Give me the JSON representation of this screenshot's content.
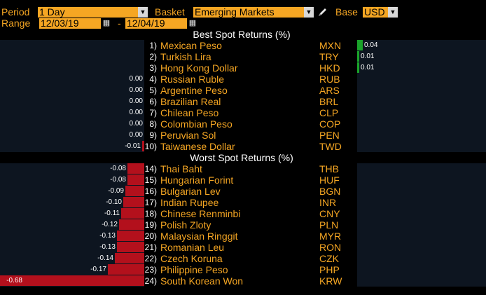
{
  "toolbar": {
    "period_label": "Period",
    "period_value": "1 Day",
    "basket_label": "Basket",
    "basket_value": "Emerging Markets",
    "base_label": "Base",
    "base_value": "USD",
    "range_label": "Range",
    "range_start": "12/03/19",
    "range_sep": "-",
    "range_end": "12/04/19"
  },
  "best_title": "Best Spot Returns (%)",
  "worst_title": "Worst Spot Returns (%)",
  "colors": {
    "accent": "#f5a623",
    "positive": "#1aa32a",
    "negative": "#b3101c",
    "panel": "#0d1520"
  },
  "best": [
    {
      "rank": "1)",
      "name": "Mexican Peso",
      "code": "MXN",
      "value": 0.04,
      "label": "0.04"
    },
    {
      "rank": "2)",
      "name": "Turkish Lira",
      "code": "TRY",
      "value": 0.01,
      "label": "0.01"
    },
    {
      "rank": "3)",
      "name": "Hong Kong Dollar",
      "code": "HKD",
      "value": 0.01,
      "label": "0.01"
    },
    {
      "rank": "4)",
      "name": "Russian Ruble",
      "code": "RUB",
      "value": 0.0,
      "label": "0.00"
    },
    {
      "rank": "5)",
      "name": "Argentine Peso",
      "code": "ARS",
      "value": 0.0,
      "label": "0.00"
    },
    {
      "rank": "6)",
      "name": "Brazilian Real",
      "code": "BRL",
      "value": 0.0,
      "label": "0.00"
    },
    {
      "rank": "7)",
      "name": "Chilean Peso",
      "code": "CLP",
      "value": 0.0,
      "label": "0.00"
    },
    {
      "rank": "8)",
      "name": "Colombian Peso",
      "code": "COP",
      "value": 0.0,
      "label": "0.00"
    },
    {
      "rank": "9)",
      "name": "Peruvian Sol",
      "code": "PEN",
      "value": 0.0,
      "label": "0.00"
    },
    {
      "rank": "10)",
      "name": "Taiwanese Dollar",
      "code": "TWD",
      "value": -0.01,
      "label": "-0.01"
    }
  ],
  "worst": [
    {
      "rank": "14)",
      "name": "Thai Baht",
      "code": "THB",
      "value": -0.08,
      "label": "-0.08"
    },
    {
      "rank": "15)",
      "name": "Hungarian Forint",
      "code": "HUF",
      "value": -0.08,
      "label": "-0.08"
    },
    {
      "rank": "16)",
      "name": "Bulgarian Lev",
      "code": "BGN",
      "value": -0.09,
      "label": "-0.09"
    },
    {
      "rank": "17)",
      "name": "Indian Rupee",
      "code": "INR",
      "value": -0.1,
      "label": "-0.10"
    },
    {
      "rank": "18)",
      "name": "Chinese Renminbi",
      "code": "CNY",
      "value": -0.11,
      "label": "-0.11"
    },
    {
      "rank": "19)",
      "name": "Polish Zloty",
      "code": "PLN",
      "value": -0.12,
      "label": "-0.12"
    },
    {
      "rank": "20)",
      "name": "Malaysian Ringgit",
      "code": "MYR",
      "value": -0.13,
      "label": "-0.13"
    },
    {
      "rank": "21)",
      "name": "Romanian Leu",
      "code": "RON",
      "value": -0.13,
      "label": "-0.13"
    },
    {
      "rank": "22)",
      "name": "Czech Koruna",
      "code": "CZK",
      "value": -0.14,
      "label": "-0.14"
    },
    {
      "rank": "23)",
      "name": "Philippine Peso",
      "code": "PHP",
      "value": -0.17,
      "label": "-0.17"
    },
    {
      "rank": "24)",
      "name": "South Korean Won",
      "code": "KRW",
      "value": -0.68,
      "label": "-0.68"
    }
  ]
}
